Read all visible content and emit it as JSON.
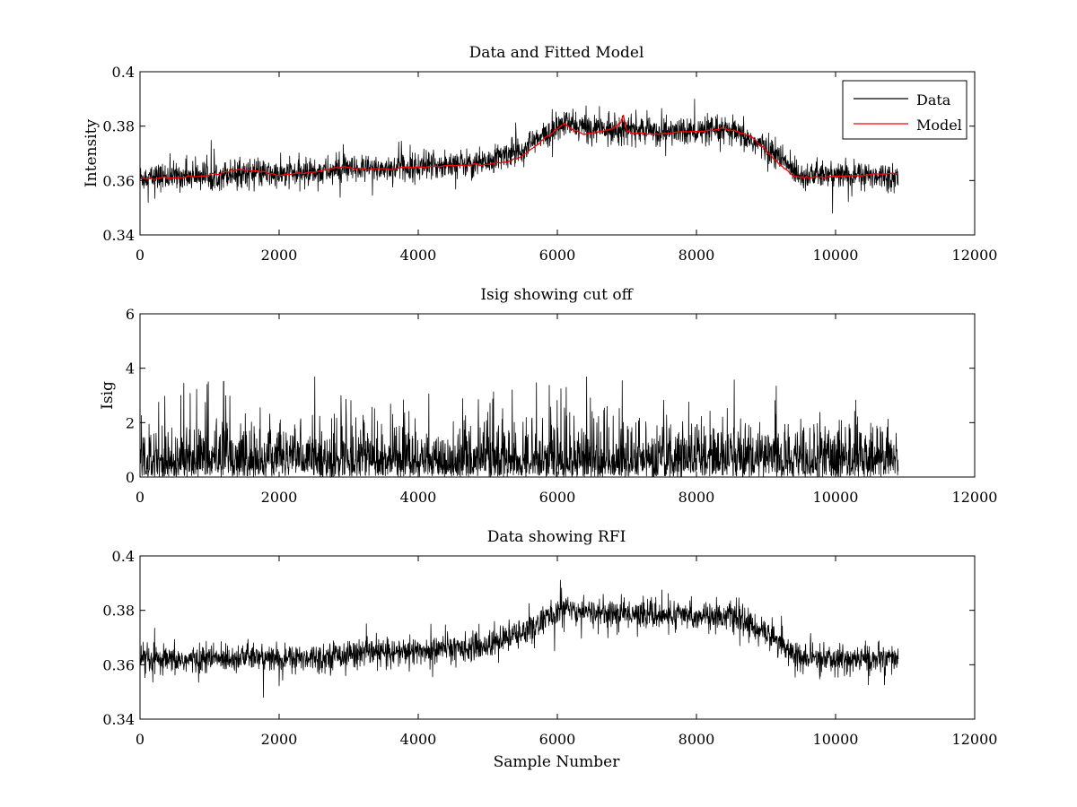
{
  "figure": {
    "background": "#ffffff",
    "series_colors": {
      "Data": "#000000",
      "Model": "#ff0000"
    }
  },
  "chart_data": [
    {
      "type": "line",
      "title": "Data and Fitted Model",
      "xlabel": "",
      "ylabel": "Intensity",
      "xlim": [
        0,
        12000
      ],
      "ylim": [
        0.34,
        0.4
      ],
      "xticks": [
        0,
        2000,
        4000,
        6000,
        8000,
        10000,
        12000
      ],
      "yticks": [
        0.34,
        0.36,
        0.38,
        0.4
      ],
      "xtick_labels": [
        "0",
        "2000",
        "4000",
        "6000",
        "8000",
        "10000",
        "12000"
      ],
      "ytick_labels": [
        "0.34",
        "0.36",
        "0.38",
        "0.4"
      ],
      "legend": "top-right",
      "grid": false,
      "series": [
        {
          "name": "Data",
          "kind": "noisy",
          "color": "#000000",
          "x_range": [
            0,
            10900
          ],
          "center_x": [
            0,
            1000,
            1500,
            2000,
            3000,
            4000,
            5000,
            5500,
            6000,
            6100,
            6500,
            7000,
            7500,
            8000,
            8500,
            9000,
            9500,
            10000,
            10900
          ],
          "center_y": [
            0.361,
            0.362,
            0.363,
            0.362,
            0.364,
            0.365,
            0.367,
            0.372,
            0.379,
            0.381,
            0.379,
            0.379,
            0.378,
            0.378,
            0.378,
            0.372,
            0.362,
            0.362,
            0.362
          ],
          "noise_band": 0.0045,
          "spike_max": 0.393,
          "spike_min": 0.348
        },
        {
          "name": "Model",
          "kind": "line",
          "color": "#ff0000",
          "x": [
            0,
            500,
            1000,
            1400,
            1700,
            2000,
            2500,
            2900,
            3300,
            4000,
            4500,
            5000,
            5300,
            5500,
            5800,
            6000,
            6100,
            6200,
            6400,
            6600,
            6800,
            6900,
            6950,
            7000,
            7300,
            7600,
            8000,
            8400,
            8600,
            8800,
            9000,
            9200,
            9400,
            9600,
            10000,
            10900
          ],
          "y": [
            0.3605,
            0.361,
            0.362,
            0.364,
            0.3635,
            0.362,
            0.363,
            0.365,
            0.364,
            0.365,
            0.3655,
            0.366,
            0.367,
            0.369,
            0.375,
            0.379,
            0.381,
            0.379,
            0.377,
            0.378,
            0.379,
            0.381,
            0.384,
            0.378,
            0.377,
            0.3775,
            0.378,
            0.379,
            0.378,
            0.376,
            0.371,
            0.366,
            0.3615,
            0.361,
            0.3615,
            0.3625
          ]
        }
      ]
    },
    {
      "type": "line",
      "title": "Isig showing cut off",
      "xlabel": "",
      "ylabel": "Isig",
      "xlim": [
        0,
        12000
      ],
      "ylim": [
        0,
        6
      ],
      "xticks": [
        0,
        2000,
        4000,
        6000,
        8000,
        10000,
        12000
      ],
      "yticks": [
        0,
        2,
        4,
        6
      ],
      "xtick_labels": [
        "0",
        "2000",
        "4000",
        "6000",
        "8000",
        "10000",
        "12000"
      ],
      "ytick_labels": [
        "0",
        "2",
        "4",
        "6"
      ],
      "grid": false,
      "series": [
        {
          "kind": "abs-noise",
          "color": "#000000",
          "x_range": [
            0,
            10900
          ],
          "typical_max": 1.5,
          "spike_max": 3.7
        }
      ]
    },
    {
      "type": "line",
      "title": "Data showing RFI",
      "xlabel": "Sample Number",
      "ylabel": "",
      "xlim": [
        0,
        12000
      ],
      "ylim": [
        0.34,
        0.4
      ],
      "xticks": [
        0,
        2000,
        4000,
        6000,
        8000,
        10000,
        12000
      ],
      "yticks": [
        0.34,
        0.36,
        0.38,
        0.4
      ],
      "xtick_labels": [
        "0",
        "2000",
        "4000",
        "6000",
        "8000",
        "10000",
        "12000"
      ],
      "ytick_labels": [
        "0.34",
        "0.36",
        "0.38",
        "0.4"
      ],
      "grid": false,
      "series": [
        {
          "kind": "noisy",
          "color": "#000000",
          "x_range": [
            0,
            10900
          ],
          "center_x": [
            0,
            1000,
            1500,
            2000,
            3000,
            4000,
            5000,
            5500,
            6000,
            6100,
            6500,
            7000,
            7500,
            8000,
            8500,
            9000,
            9500,
            10000,
            10900
          ],
          "center_y": [
            0.361,
            0.362,
            0.363,
            0.362,
            0.364,
            0.365,
            0.367,
            0.372,
            0.379,
            0.381,
            0.379,
            0.379,
            0.378,
            0.378,
            0.378,
            0.372,
            0.362,
            0.362,
            0.362
          ],
          "noise_band": 0.0045,
          "spike_max": 0.393,
          "spike_min": 0.348
        }
      ]
    }
  ]
}
